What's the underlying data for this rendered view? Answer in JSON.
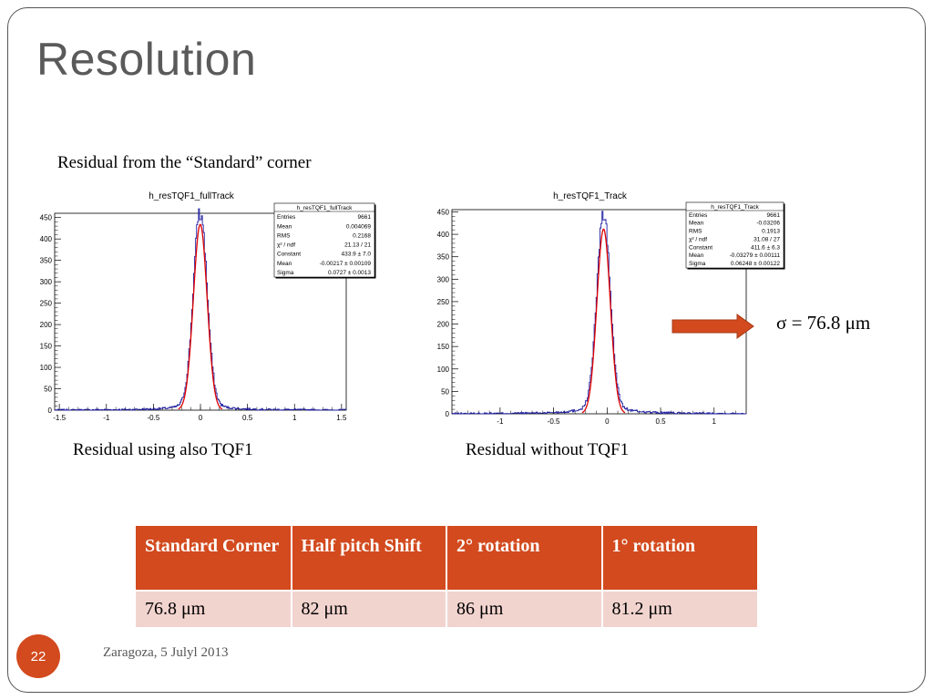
{
  "slide": {
    "title": "Resolution",
    "caption_top": "Residual from the “Standard” corner",
    "caption_left": "Residual using also TQF1",
    "caption_right": "Residual without TQF1",
    "sigma_note": "σ = 76.8 μm",
    "page_number": "22",
    "footer": "Zaragoza, 5 Julyl 2013",
    "colors": {
      "accent": "#d24a1e",
      "table_row": "#f2d4cf",
      "hist_line": "#1a1aa0",
      "fit_line": "#e00000"
    }
  },
  "table": {
    "headers": [
      "Standard Corner",
      "Half pitch Shift",
      "2° rotation",
      "1° rotation"
    ],
    "rows": [
      [
        "76.8 μm",
        "82 μm",
        "86 μm",
        "81.2 μm"
      ]
    ]
  },
  "chart_data": [
    {
      "type": "line",
      "title": "h_resTQF1_fullTrack",
      "xlim": [
        -1.55,
        1.55
      ],
      "ylim": [
        0,
        460
      ],
      "xticks": [
        "-1.5",
        "-1",
        "-0.5",
        "0",
        "0.5",
        "1",
        "1.5"
      ],
      "yticks": [
        "0",
        "50",
        "100",
        "150",
        "200",
        "250",
        "300",
        "350",
        "400",
        "450"
      ],
      "stats_box": {
        "title": "h_resTQF1_fullTrack",
        "rows": [
          [
            "Entries",
            "9661"
          ],
          [
            "Mean",
            "0.004069"
          ],
          [
            "RMS",
            "0.2168"
          ],
          [
            "χ² / ndf",
            "21.13 / 21"
          ],
          [
            "Constant",
            "433.9 ± 7.0"
          ],
          [
            "Mean",
            "-0.00217 ± 0.00109"
          ],
          [
            "Sigma",
            "0.0727 ± 0.0013"
          ]
        ]
      },
      "series": [
        {
          "name": "",
          "values": []
        }
      ],
      "fit": {
        "constant": 433.9,
        "mean": -0.00217,
        "sigma": 0.0727
      },
      "peak": 445
    },
    {
      "type": "line",
      "title": "h_resTQF1_Track",
      "xlim": [
        -1.45,
        1.3
      ],
      "ylim": [
        0,
        455
      ],
      "xticks": [
        "-1",
        "-0.5",
        "0",
        "0.5",
        "1"
      ],
      "yticks": [
        "0",
        "50",
        "100",
        "150",
        "200",
        "250",
        "300",
        "350",
        "400",
        "450"
      ],
      "stats_box": {
        "title": "h_resTQF1_Track",
        "rows": [
          [
            "Entries",
            "9661"
          ],
          [
            "Mean",
            "-0.03206"
          ],
          [
            "RMS",
            "0.1913"
          ],
          [
            "χ² / ndf",
            "31.08 / 27"
          ],
          [
            "Constant",
            "411.6 ± 6.3"
          ],
          [
            "Mean",
            "-0.03279 ± 0.00111"
          ],
          [
            "Sigma",
            "0.06248 ± 0.00122"
          ]
        ]
      },
      "series": [
        {
          "name": "",
          "values": []
        }
      ],
      "fit": {
        "constant": 411.6,
        "mean": -0.03279,
        "sigma": 0.06248
      },
      "peak": 432
    }
  ]
}
